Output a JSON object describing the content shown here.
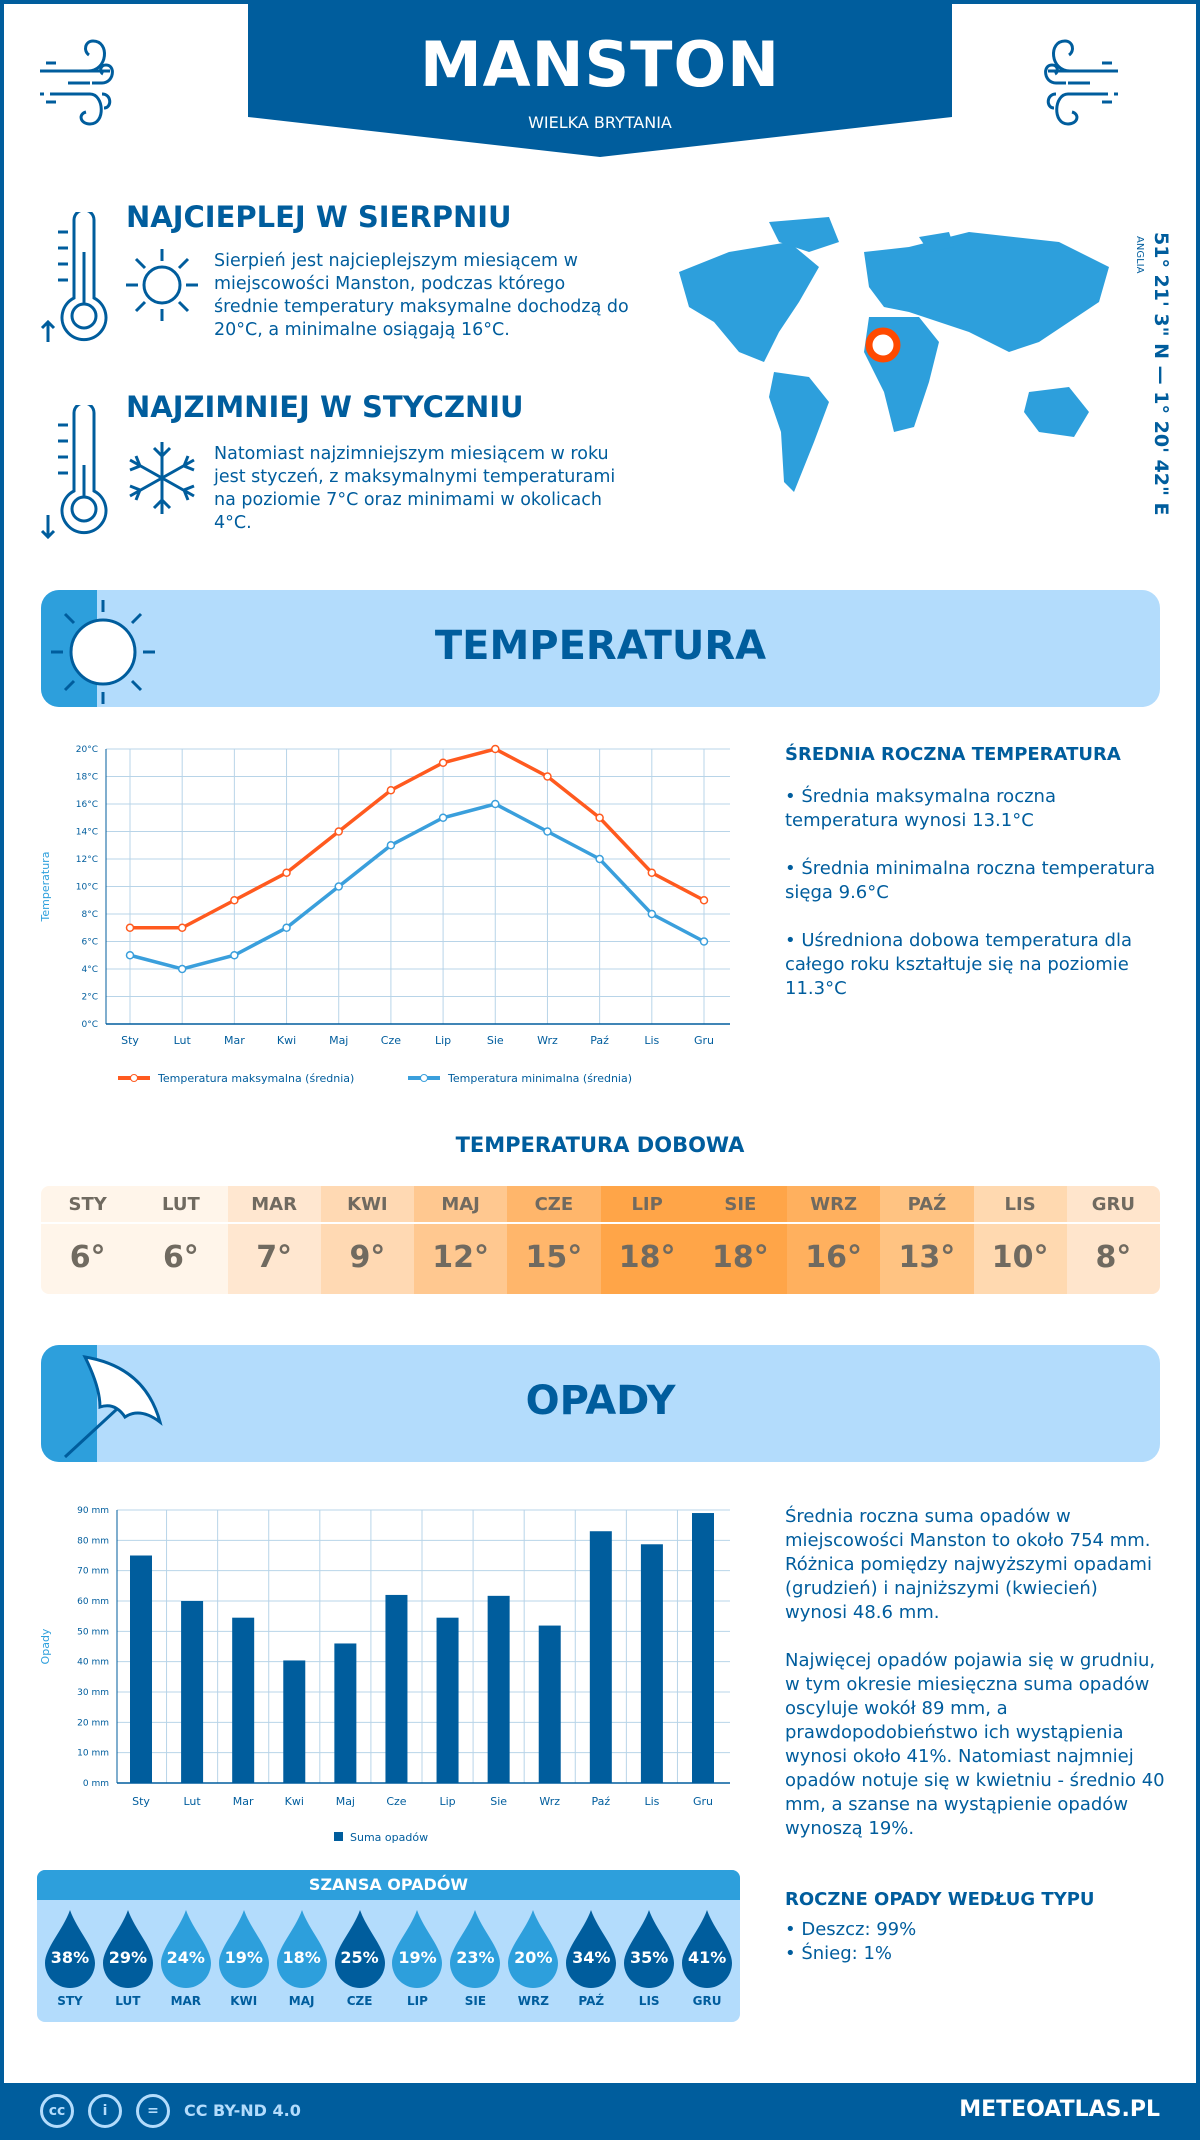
{
  "header": {
    "title": "MANSTON",
    "subtitle": "WIELKA BRYTANIA"
  },
  "hottest": {
    "title": "NAJCIEPLEJ W SIERPNIU",
    "text": "Sierpień jest najcieplejszym miesiącem w miejscowości Manston, podczas którego średnie temperatury maksymalne dochodzą do 20°C, a minimalne osiągają 16°C."
  },
  "coldest": {
    "title": "NAJZIMNIEJ W STYCZNIU",
    "text": "Natomiast najzimniejszym miesiącem w roku jest styczeń, z maksymalnymi temperaturami na poziomie 7°C oraz minimami w okolicach 4°C."
  },
  "location": {
    "coords": "51° 21' 3\" N — 1° 20' 42\" E",
    "region": "ANGLIA",
    "marker_color": "#ff4a00"
  },
  "temperature_section": {
    "title": "TEMPERATURA",
    "side_title": "ŚREDNIA ROCZNA TEMPERATURA",
    "bullets": [
      "• Średnia maksymalna roczna temperatura wynosi 13.1°C",
      "• Średnia minimalna roczna temperatura sięga 9.6°C",
      "• Uśredniona dobowa temperatura dla całego roku kształtuje się na poziomie 11.3°C"
    ]
  },
  "daily": {
    "title": "TEMPERATURA DOBOWA",
    "months": [
      "STY",
      "LUT",
      "MAR",
      "KWI",
      "MAJ",
      "CZE",
      "LIP",
      "SIE",
      "WRZ",
      "PAŹ",
      "LIS",
      "GRU"
    ],
    "values": [
      "6°",
      "6°",
      "7°",
      "9°",
      "12°",
      "15°",
      "18°",
      "18°",
      "16°",
      "13°",
      "10°",
      "8°"
    ],
    "colors": [
      "#fff5ea",
      "#fff5ea",
      "#ffe7d0",
      "#ffd9b3",
      "#ffc890",
      "#ffb66b",
      "#ffa548",
      "#ffa548",
      "#ffb05e",
      "#ffc382",
      "#ffd9b0",
      "#ffe5cc"
    ]
  },
  "precip_section": {
    "title": "OPADY",
    "paragraphs": [
      "Średnia roczna suma opadów w miejscowości Manston to około 754 mm. Różnica pomiędzy najwyższymi opadami (grudzień) i najniższymi (kwiecień) wynosi 48.6 mm.",
      "Najwięcej opadów pojawia się w grudniu, w tym okresie miesięczna suma opadów oscyluje wokół 89 mm, a prawdopodobieństwo ich wystąpienia wynosi około 41%. Natomiast najmniej opadów notuje się w kwietniu - średnio 40 mm, a szanse na wystąpienie opadów wynoszą 19%."
    ],
    "type_title": "ROCZNE OPADY WEDŁUG TYPU",
    "types": [
      "• Deszcz: 99%",
      "• Śnieg: 1%"
    ]
  },
  "chance": {
    "title": "SZANSA OPADÓW",
    "months": [
      "STY",
      "LUT",
      "MAR",
      "KWI",
      "MAJ",
      "CZE",
      "LIP",
      "SIE",
      "WRZ",
      "PAŹ",
      "LIS",
      "GRU"
    ],
    "values": [
      "38%",
      "29%",
      "24%",
      "19%",
      "18%",
      "25%",
      "19%",
      "23%",
      "20%",
      "34%",
      "35%",
      "41%"
    ],
    "dark_color": "#005d9d",
    "light_color": "#2d9fdc"
  },
  "footer": {
    "license": "CC BY-ND 4.0",
    "site": "METEOATLAS.PL"
  },
  "chart_data": [
    {
      "type": "line",
      "categories": [
        "Sty",
        "Lut",
        "Mar",
        "Kwi",
        "Maj",
        "Cze",
        "Lip",
        "Sie",
        "Wrz",
        "Paź",
        "Lis",
        "Gru"
      ],
      "series": [
        {
          "name": "Temperatura maksymalna (średnia)",
          "values": [
            7,
            7,
            9,
            11,
            14,
            17,
            19,
            20,
            18,
            15,
            11,
            9
          ],
          "color": "#ff5a1f"
        },
        {
          "name": "Temperatura minimalna (średnia)",
          "values": [
            5,
            4,
            5,
            7,
            10,
            13,
            15,
            16,
            14,
            12,
            8,
            6
          ],
          "color": "#3a9fdc"
        }
      ],
      "ylabel": "Temperatura",
      "ylim": [
        0,
        20
      ],
      "yticks": [
        "0°C",
        "2°C",
        "4°C",
        "6°C",
        "8°C",
        "10°C",
        "12°C",
        "14°C",
        "16°C",
        "18°C",
        "20°C"
      ],
      "grid": true,
      "legend": "bottom"
    },
    {
      "type": "bar",
      "categories": [
        "Sty",
        "Lut",
        "Mar",
        "Kwi",
        "Maj",
        "Cze",
        "Lip",
        "Sie",
        "Wrz",
        "Paź",
        "Lis",
        "Gru"
      ],
      "series": [
        {
          "name": "Suma opadów",
          "values": [
            75,
            60,
            54.5,
            40.4,
            46,
            62,
            54.5,
            61.7,
            51.9,
            83,
            78.7,
            89
          ],
          "color": "#005d9d"
        }
      ],
      "ylabel": "Opady",
      "ylim": [
        0,
        90
      ],
      "yticks": [
        "0 mm",
        "10 mm",
        "20 mm",
        "30 mm",
        "40 mm",
        "50 mm",
        "60 mm",
        "70 mm",
        "80 mm",
        "90 mm"
      ],
      "grid": true,
      "legend": "bottom"
    }
  ]
}
